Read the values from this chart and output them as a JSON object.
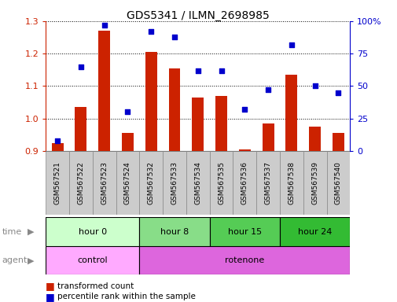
{
  "title": "GDS5341 / ILMN_2698985",
  "samples": [
    "GSM567521",
    "GSM567522",
    "GSM567523",
    "GSM567524",
    "GSM567532",
    "GSM567533",
    "GSM567534",
    "GSM567535",
    "GSM567536",
    "GSM567537",
    "GSM567538",
    "GSM567539",
    "GSM567540"
  ],
  "transformed_count": [
    0.925,
    1.035,
    1.27,
    0.955,
    1.205,
    1.155,
    1.065,
    1.07,
    0.905,
    0.985,
    1.135,
    0.975,
    0.955
  ],
  "percentile_rank": [
    8,
    65,
    97,
    30,
    92,
    88,
    62,
    62,
    32,
    47,
    82,
    50,
    45
  ],
  "ylim_left": [
    0.9,
    1.3
  ],
  "ylim_right": [
    0,
    100
  ],
  "yticks_left": [
    0.9,
    1.0,
    1.1,
    1.2,
    1.3
  ],
  "yticks_right": [
    0,
    25,
    50,
    75,
    100
  ],
  "yticklabels_right": [
    "0",
    "25",
    "50",
    "75",
    "100%"
  ],
  "bar_color": "#CC2200",
  "dot_color": "#0000CC",
  "time_groups": [
    {
      "label": "hour 0",
      "start": 0,
      "end": 4,
      "color": "#ccffcc"
    },
    {
      "label": "hour 8",
      "start": 4,
      "end": 7,
      "color": "#88dd88"
    },
    {
      "label": "hour 15",
      "start": 7,
      "end": 10,
      "color": "#55cc55"
    },
    {
      "label": "hour 24",
      "start": 10,
      "end": 13,
      "color": "#33bb33"
    }
  ],
  "agent_groups": [
    {
      "label": "control",
      "start": 0,
      "end": 4,
      "color": "#ffaaff"
    },
    {
      "label": "rotenone",
      "start": 4,
      "end": 13,
      "color": "#dd66dd"
    }
  ],
  "legend_bar_label": "transformed count",
  "legend_dot_label": "percentile rank within the sample",
  "time_label": "time",
  "agent_label": "agent",
  "label_bg_color": "#cccccc",
  "label_border_color": "#888888"
}
